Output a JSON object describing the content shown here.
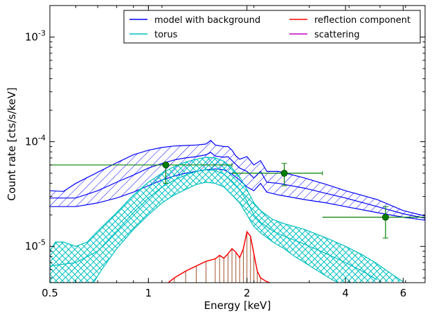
{
  "chart_data": {
    "type": "line",
    "xlabel": "Energy [keV]",
    "ylabel": "Count rate [cts/s/keV]",
    "x_scale": "log",
    "y_scale": "log",
    "xlim": [
      0.5,
      7.0
    ],
    "ylim": [
      4.5e-06,
      0.002
    ],
    "x_ticks": [
      {
        "value": 0.5,
        "label": "0.5"
      },
      {
        "value": 1,
        "label": "1"
      },
      {
        "value": 2,
        "label": "2"
      },
      {
        "value": 4,
        "label": "4"
      },
      {
        "value": 6,
        "label": "6"
      }
    ],
    "y_ticks": [
      {
        "value": 1e-05,
        "base": "10",
        "exp": "-5"
      },
      {
        "value": 0.0001,
        "base": "10",
        "exp": "-4"
      },
      {
        "value": 0.001,
        "base": "10",
        "exp": "-3"
      }
    ],
    "grid": false,
    "legend_position": "top-right",
    "legend": [
      {
        "label": "model with background",
        "color": "#0000ff"
      },
      {
        "label": "reflection component",
        "color": "#ff0000"
      },
      {
        "label": "torus",
        "color": "#00bfbf"
      },
      {
        "label": "scattering",
        "color": "#bf00bf"
      }
    ],
    "series": [
      {
        "name": "model with background",
        "color": "#0000ff",
        "style": "hatched-band",
        "upper": [
          [
            0.5,
            3.4e-05
          ],
          [
            0.55,
            3.35e-05
          ],
          [
            0.6,
            4e-05
          ],
          [
            0.7,
            5.1e-05
          ],
          [
            0.8,
            6.3e-05
          ],
          [
            0.9,
            7.5e-05
          ],
          [
            1.0,
            8.3e-05
          ],
          [
            1.1,
            8.8e-05
          ],
          [
            1.2,
            9.1e-05
          ],
          [
            1.3,
            9.2e-05
          ],
          [
            1.4,
            9.3e-05
          ],
          [
            1.5,
            9.5e-05
          ],
          [
            1.55,
            0.000103
          ],
          [
            1.6,
            9.3e-05
          ],
          [
            1.7,
            9e-05
          ],
          [
            1.75,
            9e-05
          ],
          [
            1.8,
            8.3e-05
          ],
          [
            1.85,
            7.3e-05
          ],
          [
            1.9,
            6.8e-05
          ],
          [
            2.0,
            7.2e-05
          ],
          [
            2.1,
            6e-05
          ],
          [
            2.2,
            6.6e-05
          ],
          [
            2.3,
            5.2e-05
          ],
          [
            2.5,
            5.2e-05
          ],
          [
            3.0,
            4.5e-05
          ],
          [
            3.5,
            3.9e-05
          ],
          [
            4.0,
            3.4e-05
          ],
          [
            5.0,
            2.8e-05
          ],
          [
            6.0,
            2.2e-05
          ],
          [
            7.0,
            1.95e-05
          ]
        ],
        "lower": [
          [
            0.5,
            2.4e-05
          ],
          [
            0.6,
            2.4e-05
          ],
          [
            0.7,
            2.6e-05
          ],
          [
            0.8,
            2.9e-05
          ],
          [
            0.9,
            3.3e-05
          ],
          [
            1.0,
            3.8e-05
          ],
          [
            1.1,
            4.3e-05
          ],
          [
            1.2,
            4.7e-05
          ],
          [
            1.3,
            5e-05
          ],
          [
            1.4,
            5.2e-05
          ],
          [
            1.5,
            5.4e-05
          ],
          [
            1.6,
            5.5e-05
          ],
          [
            1.7,
            5.4e-05
          ],
          [
            1.8,
            4.9e-05
          ],
          [
            1.9,
            4.3e-05
          ],
          [
            2.0,
            3.7e-05
          ],
          [
            2.1,
            3.4e-05
          ],
          [
            2.2,
            4e-05
          ],
          [
            2.3,
            3.3e-05
          ],
          [
            2.5,
            3.1e-05
          ],
          [
            3.0,
            2.8e-05
          ],
          [
            3.5,
            2.6e-05
          ],
          [
            4.0,
            2.4e-05
          ],
          [
            5.0,
            2.1e-05
          ],
          [
            6.0,
            1.9e-05
          ],
          [
            7.0,
            1.78e-05
          ]
        ],
        "median": [
          [
            0.5,
            2.9e-05
          ],
          [
            0.6,
            2.9e-05
          ],
          [
            0.7,
            3.4e-05
          ],
          [
            0.8,
            4.1e-05
          ],
          [
            0.9,
            4.8e-05
          ],
          [
            1.0,
            5.6e-05
          ],
          [
            1.1,
            6.2e-05
          ],
          [
            1.2,
            6.7e-05
          ],
          [
            1.3,
            7e-05
          ],
          [
            1.4,
            7.2e-05
          ],
          [
            1.5,
            7.5e-05
          ],
          [
            1.55,
            7.9e-05
          ],
          [
            1.6,
            7.3e-05
          ],
          [
            1.7,
            7.1e-05
          ],
          [
            1.75,
            7.2e-05
          ],
          [
            1.8,
            6.6e-05
          ],
          [
            1.9,
            5.6e-05
          ],
          [
            2.0,
            5.2e-05
          ],
          [
            2.1,
            4.5e-05
          ],
          [
            2.2,
            5.2e-05
          ],
          [
            2.3,
            4.1e-05
          ],
          [
            2.5,
            4e-05
          ],
          [
            3.0,
            3.6e-05
          ],
          [
            3.5,
            3.2e-05
          ],
          [
            4.0,
            2.9e-05
          ],
          [
            5.0,
            2.4e-05
          ],
          [
            6.0,
            2.05e-05
          ],
          [
            7.0,
            1.86e-05
          ]
        ]
      },
      {
        "name": "torus",
        "color": "#00bfbf",
        "style": "crosshatched-band",
        "upper": [
          [
            0.5,
            9e-06
          ],
          [
            0.52,
            1.1e-05
          ],
          [
            0.55,
            1.1e-05
          ],
          [
            0.6,
            1e-05
          ],
          [
            0.65,
            1.1e-05
          ],
          [
            0.7,
            1.4e-05
          ],
          [
            0.8,
            2.1e-05
          ],
          [
            0.9,
            3.1e-05
          ],
          [
            1.0,
            4.1e-05
          ],
          [
            1.1,
            5e-05
          ],
          [
            1.2,
            5.8e-05
          ],
          [
            1.3,
            6.4e-05
          ],
          [
            1.4,
            6.8e-05
          ],
          [
            1.5,
            7.1e-05
          ],
          [
            1.6,
            7e-05
          ],
          [
            1.7,
            6.5e-05
          ],
          [
            1.8,
            5.6e-05
          ],
          [
            1.9,
            4.6e-05
          ],
          [
            2.0,
            3.5e-05
          ],
          [
            2.1,
            2.6e-05
          ],
          [
            2.2,
            2.2e-05
          ],
          [
            2.4,
            1.8e-05
          ],
          [
            2.6,
            1.65e-05
          ],
          [
            3.0,
            1.45e-05
          ],
          [
            3.5,
            1.2e-05
          ],
          [
            4.0,
            1e-05
          ],
          [
            4.5,
            8.3e-06
          ],
          [
            5.0,
            6.8e-06
          ],
          [
            5.5,
            5.5e-06
          ],
          [
            6.0,
            4.6e-06
          ]
        ],
        "lower": [
          [
            0.5,
            4.5e-06
          ],
          [
            0.6,
            4.5e-06
          ],
          [
            0.68,
            4.5e-06
          ],
          [
            0.72,
            6e-06
          ],
          [
            0.8,
            9.5e-06
          ],
          [
            0.9,
            1.45e-05
          ],
          [
            1.0,
            2e-05
          ],
          [
            1.1,
            2.6e-05
          ],
          [
            1.2,
            3.1e-05
          ],
          [
            1.3,
            3.5e-05
          ],
          [
            1.4,
            3.9e-05
          ],
          [
            1.5,
            4.1e-05
          ],
          [
            1.6,
            4e-05
          ],
          [
            1.7,
            3.7e-05
          ],
          [
            1.8,
            3.1e-05
          ],
          [
            1.9,
            2.6e-05
          ],
          [
            2.0,
            2e-05
          ],
          [
            2.1,
            1.55e-05
          ],
          [
            2.2,
            1.35e-05
          ],
          [
            2.4,
            1.1e-05
          ],
          [
            2.6,
            9.5e-06
          ],
          [
            2.8,
            8e-06
          ],
          [
            3.0,
            7e-06
          ],
          [
            3.3,
            5.8e-06
          ],
          [
            3.6,
            4.9e-06
          ],
          [
            3.8,
            4.5e-06
          ]
        ],
        "median": [
          [
            0.5,
            6.5e-06
          ],
          [
            0.6,
            7e-06
          ],
          [
            0.7,
            9e-06
          ],
          [
            0.8,
            1.4e-05
          ],
          [
            0.9,
            2.1e-05
          ],
          [
            1.0,
            2.9e-05
          ],
          [
            1.1,
            3.7e-05
          ],
          [
            1.2,
            4.3e-05
          ],
          [
            1.3,
            4.8e-05
          ],
          [
            1.4,
            5.2e-05
          ],
          [
            1.5,
            5.4e-05
          ],
          [
            1.6,
            5.3e-05
          ],
          [
            1.7,
            4.9e-05
          ],
          [
            1.8,
            4.2e-05
          ],
          [
            1.9,
            3.5e-05
          ],
          [
            2.0,
            2.7e-05
          ],
          [
            2.1,
            2e-05
          ],
          [
            2.2,
            1.7e-05
          ],
          [
            2.4,
            1.4e-05
          ],
          [
            2.6,
            1.25e-05
          ],
          [
            3.0,
            1.05e-05
          ],
          [
            3.5,
            8.5e-06
          ],
          [
            4.0,
            7e-06
          ],
          [
            4.5,
            5.8e-06
          ],
          [
            5.0,
            4.8e-06
          ]
        ]
      },
      {
        "name": "reflection component",
        "color": "#ff0000",
        "style": "line-with-hatch",
        "values": [
          [
            1.15,
            4.5e-06
          ],
          [
            1.2,
            5e-06
          ],
          [
            1.3,
            5.8e-06
          ],
          [
            1.4,
            6.5e-06
          ],
          [
            1.5,
            7.2e-06
          ],
          [
            1.6,
            7.6e-06
          ],
          [
            1.65,
            8.2e-06
          ],
          [
            1.7,
            7.7e-06
          ],
          [
            1.75,
            8.5e-06
          ],
          [
            1.8,
            9.5e-06
          ],
          [
            1.85,
            8.8e-06
          ],
          [
            1.9,
            7.8e-06
          ],
          [
            1.95,
            9.5e-06
          ],
          [
            2.0,
            1.38e-05
          ],
          [
            2.05,
            1.25e-05
          ],
          [
            2.1,
            8.5e-06
          ],
          [
            2.15,
            5.8e-06
          ],
          [
            2.2,
            5e-06
          ],
          [
            2.3,
            4.6e-06
          ],
          [
            2.35,
            4.5e-06
          ]
        ]
      },
      {
        "name": "scattering",
        "color": "#bf00bf",
        "style": "line",
        "values": []
      },
      {
        "name": "data",
        "color": "#008000",
        "style": "errorbar",
        "points": [
          {
            "x": 1.13,
            "y": 6e-05,
            "xerr": [
              0.5,
              1.8
            ],
            "yerr": [
              4e-05,
              6.2e-05
            ]
          },
          {
            "x": 2.6,
            "y": 5e-05,
            "xerr": [
              1.8,
              3.4
            ],
            "yerr": [
              3.8e-05,
              6.2e-05
            ]
          },
          {
            "x": 5.3,
            "y": 1.9e-05,
            "xerr": [
              3.4,
              7.0
            ],
            "yerr": [
              1.2e-05,
              2.4e-05
            ]
          }
        ]
      }
    ]
  }
}
